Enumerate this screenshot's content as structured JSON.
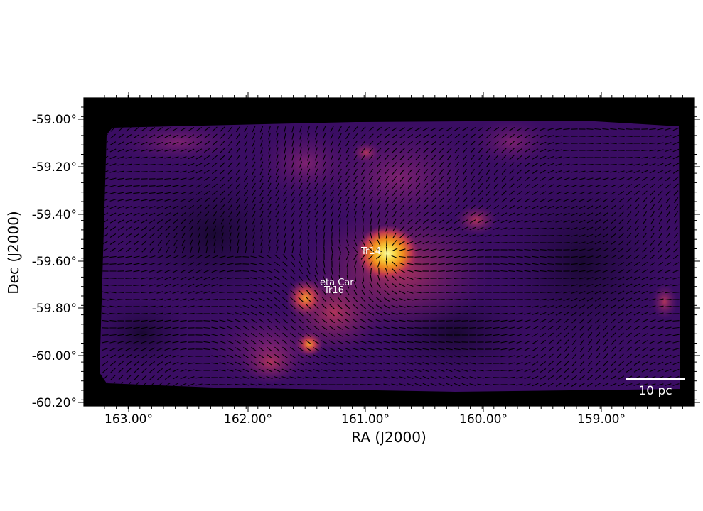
{
  "figure": {
    "ra_ticks": [
      "163.00°",
      "162.00°",
      "161.00°",
      "160.00°",
      "159.00°"
    ],
    "dec_ticks": [
      "-59.00°",
      "-59.20°",
      "-59.40°",
      "-59.60°",
      "-59.80°",
      "-60.00°",
      "-60.20°"
    ],
    "xlabel": "RA (J2000)",
    "ylabel": "Dec (J2000)",
    "annotations": [
      {
        "id": "tr14",
        "label": "Tr14"
      },
      {
        "id": "eta-car",
        "label": "eta Car"
      },
      {
        "id": "tr16",
        "label": "Tr16"
      }
    ],
    "scale_bar": {
      "label": "10 pc"
    },
    "colormap": "inferno",
    "background_color": "#000000",
    "vector_color": "#000000"
  }
}
